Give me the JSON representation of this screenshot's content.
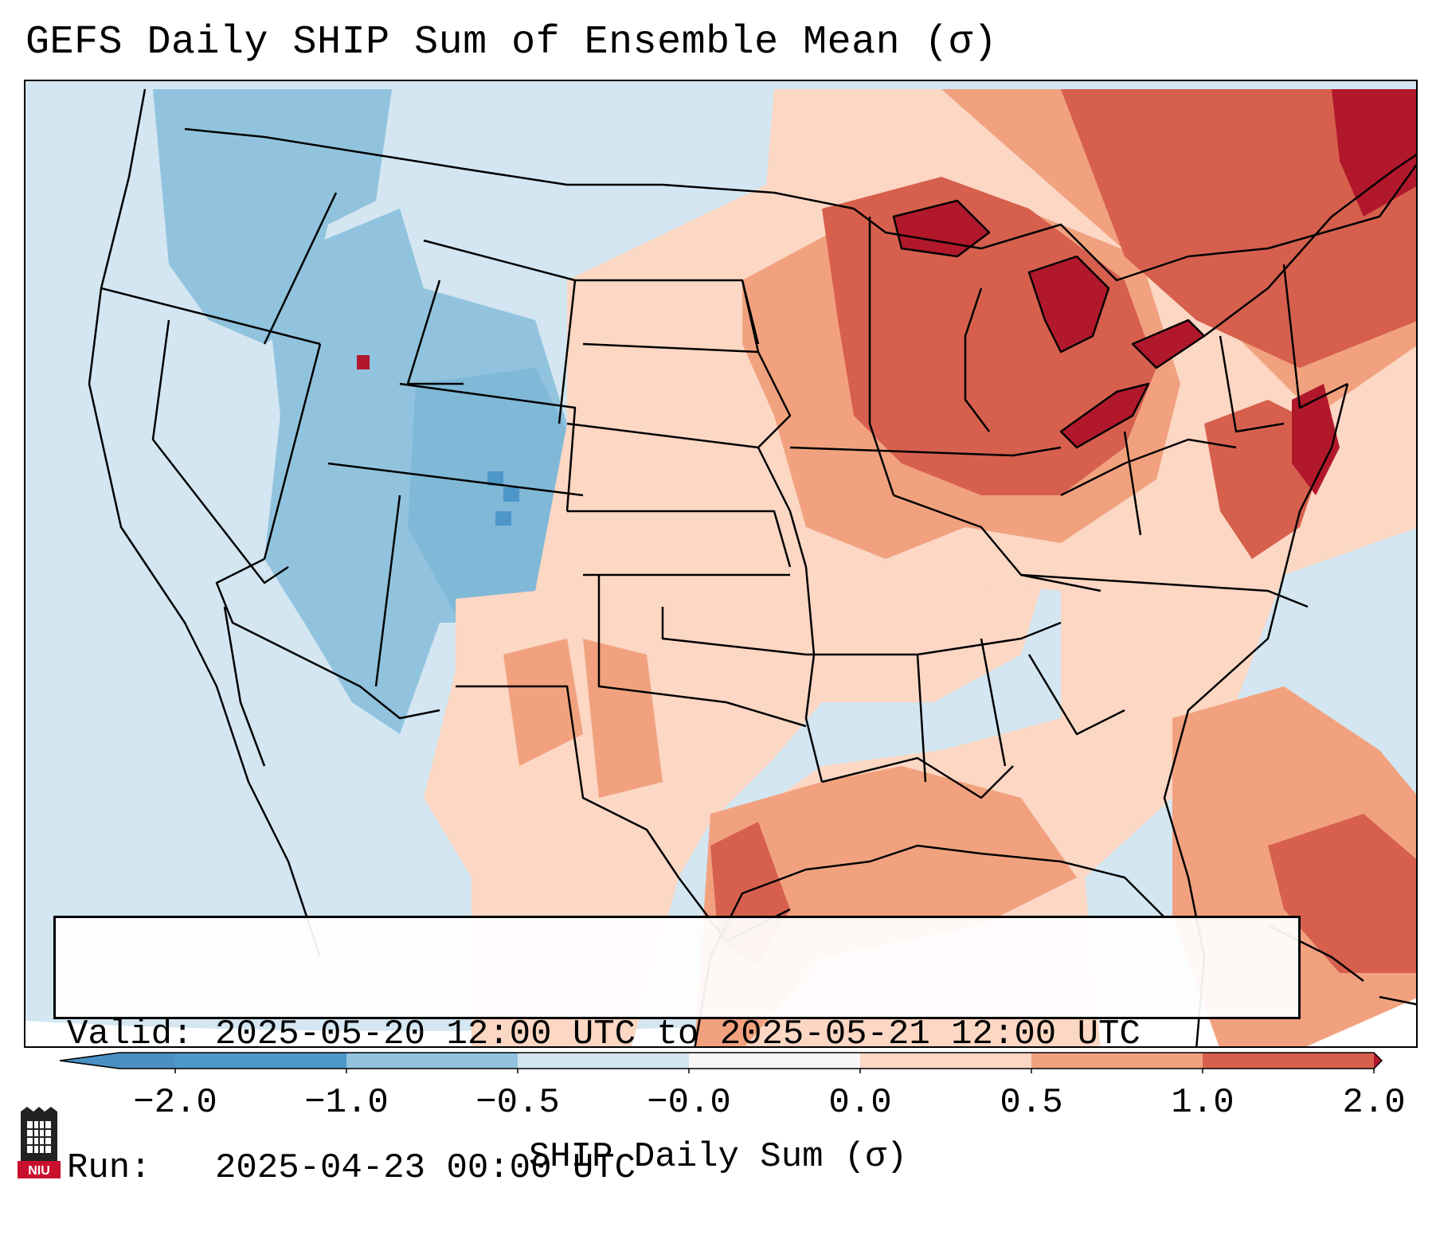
{
  "title": "GEFS Daily SHIP Sum of Ensemble Mean (σ)",
  "info_box": {
    "valid_label": "Valid:",
    "valid_value": "2025-05-20 12:00 UTC to 2025-05-21 12:00 UTC",
    "run_label": "Run:",
    "run_value": "2025-04-23 00:00 UTC"
  },
  "colorbar": {
    "label": "SHIP Daily Sum (σ)",
    "ticks": [
      "−2.0",
      "−1.0",
      "−0.5",
      "−0.0",
      "0.0",
      "0.5",
      "1.0",
      "2.0"
    ],
    "bins": [
      {
        "range": "< -2.0",
        "color": "#4a90c4"
      },
      {
        "range": "-2.0 to -1.0",
        "color": "#4d97c9"
      },
      {
        "range": "-1.0 to -0.5",
        "color": "#91c3de"
      },
      {
        "range": "-0.5 to -0.0",
        "color": "#d3e6f1"
      },
      {
        "range": "-0.0 to 0.0",
        "color": "#f7f7f7"
      },
      {
        "range": "0.0 to 0.5",
        "color": "#fbd7c4"
      },
      {
        "range": "0.5 to 1.0",
        "color": "#f2a17f"
      },
      {
        "range": "1.0 to 2.0",
        "color": "#d6604d"
      },
      {
        "range": "> 2.0",
        "color": "#b2182b"
      }
    ]
  },
  "map": {
    "region": "Contiguous United States",
    "shading_summary": [
      {
        "area": "Pacific Northwest, Great Basin, Rockies, Southwest",
        "category": "-1.0 to -0.5 / -0.5 to -0.0"
      },
      {
        "area": "Great Lakes, Northeast, Mid-Atlantic",
        "category": "1.0 to 2.0 / > 2.0"
      },
      {
        "area": "Midwest, Plains, Texas, Gulf of Mexico, Atlantic",
        "category": "0.0 to 0.5 / 0.5 to 1.0"
      },
      {
        "area": "Southeast",
        "category": "-0.5 to -0.0"
      }
    ]
  },
  "logo": {
    "text": "NIU",
    "color": "#c8102e"
  }
}
